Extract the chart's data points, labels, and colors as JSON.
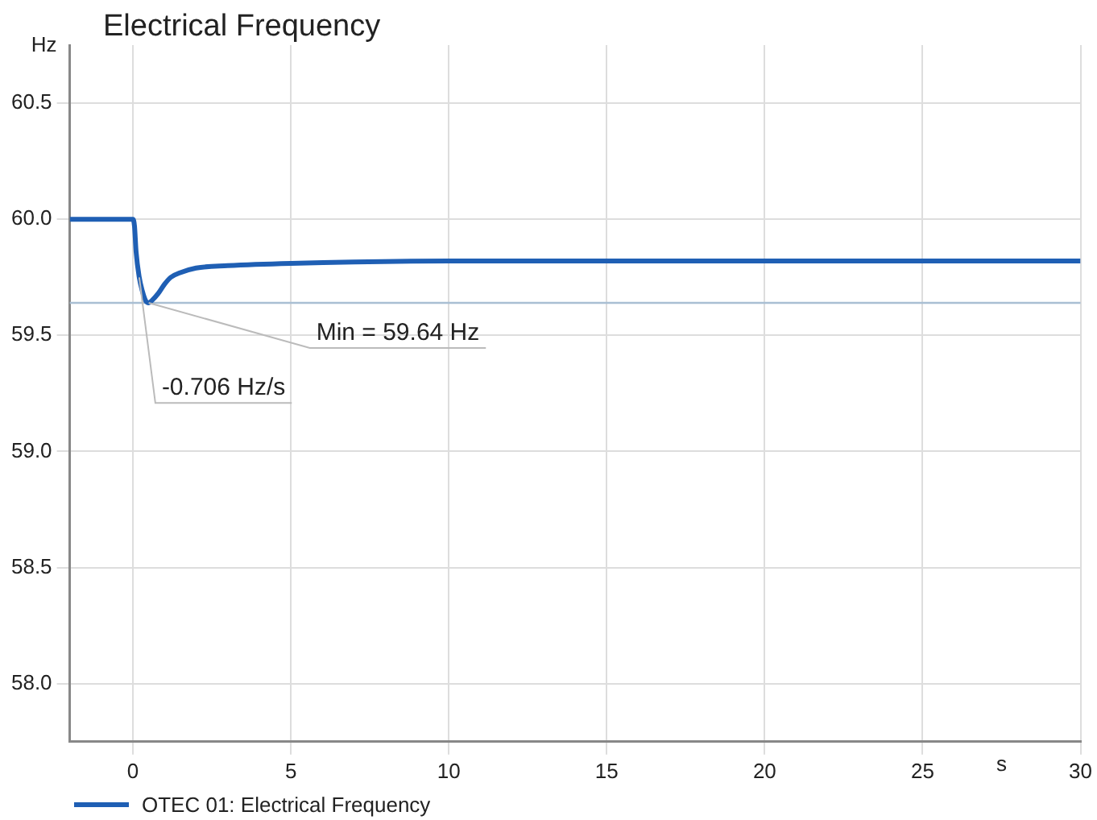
{
  "chart_data": {
    "type": "line",
    "title": "Electrical Frequency",
    "xlabel": "s",
    "ylabel": "Hz",
    "x": [
      -2,
      0,
      0.05,
      0.1,
      0.2,
      0.3,
      0.4,
      0.5,
      0.6,
      0.8,
      1,
      1.2,
      1.5,
      2,
      3,
      5,
      10,
      15,
      20,
      30
    ],
    "series": [
      {
        "name": "OTEC 01: Electrical Frequency",
        "color": "#1f5fb4",
        "values": [
          60,
          60,
          59.97,
          59.86,
          59.75,
          59.69,
          59.65,
          59.64,
          59.65,
          59.68,
          59.72,
          59.75,
          59.77,
          59.79,
          59.8,
          59.81,
          59.82,
          59.82,
          59.82,
          59.82
        ]
      }
    ],
    "xlim": [
      -2,
      30
    ],
    "xticks": [
      0,
      5,
      10,
      15,
      20,
      25,
      30
    ],
    "ylim": [
      57.75,
      60.75
    ],
    "yticks": [
      {
        "value": 58,
        "label": "58.0"
      },
      {
        "value": 58.5,
        "label": "58.5"
      },
      {
        "value": 59,
        "label": "59.0"
      },
      {
        "value": 59.5,
        "label": "59.5"
      },
      {
        "value": 60,
        "label": "60.0"
      },
      {
        "value": 60.5,
        "label": "60.5"
      }
    ],
    "ref_lines": [
      {
        "axis": "y",
        "value": 59.64,
        "color": "#a9bfd3"
      }
    ],
    "annotations": [
      {
        "text": "Min = 59.64 Hz",
        "x": 0.5,
        "y": 59.64
      },
      {
        "text": "-0.706 Hz/s",
        "x": 0.2,
        "y": 59.75
      }
    ],
    "grid": true,
    "legend": "bottom left",
    "marker": "none",
    "line_style": "solid"
  }
}
